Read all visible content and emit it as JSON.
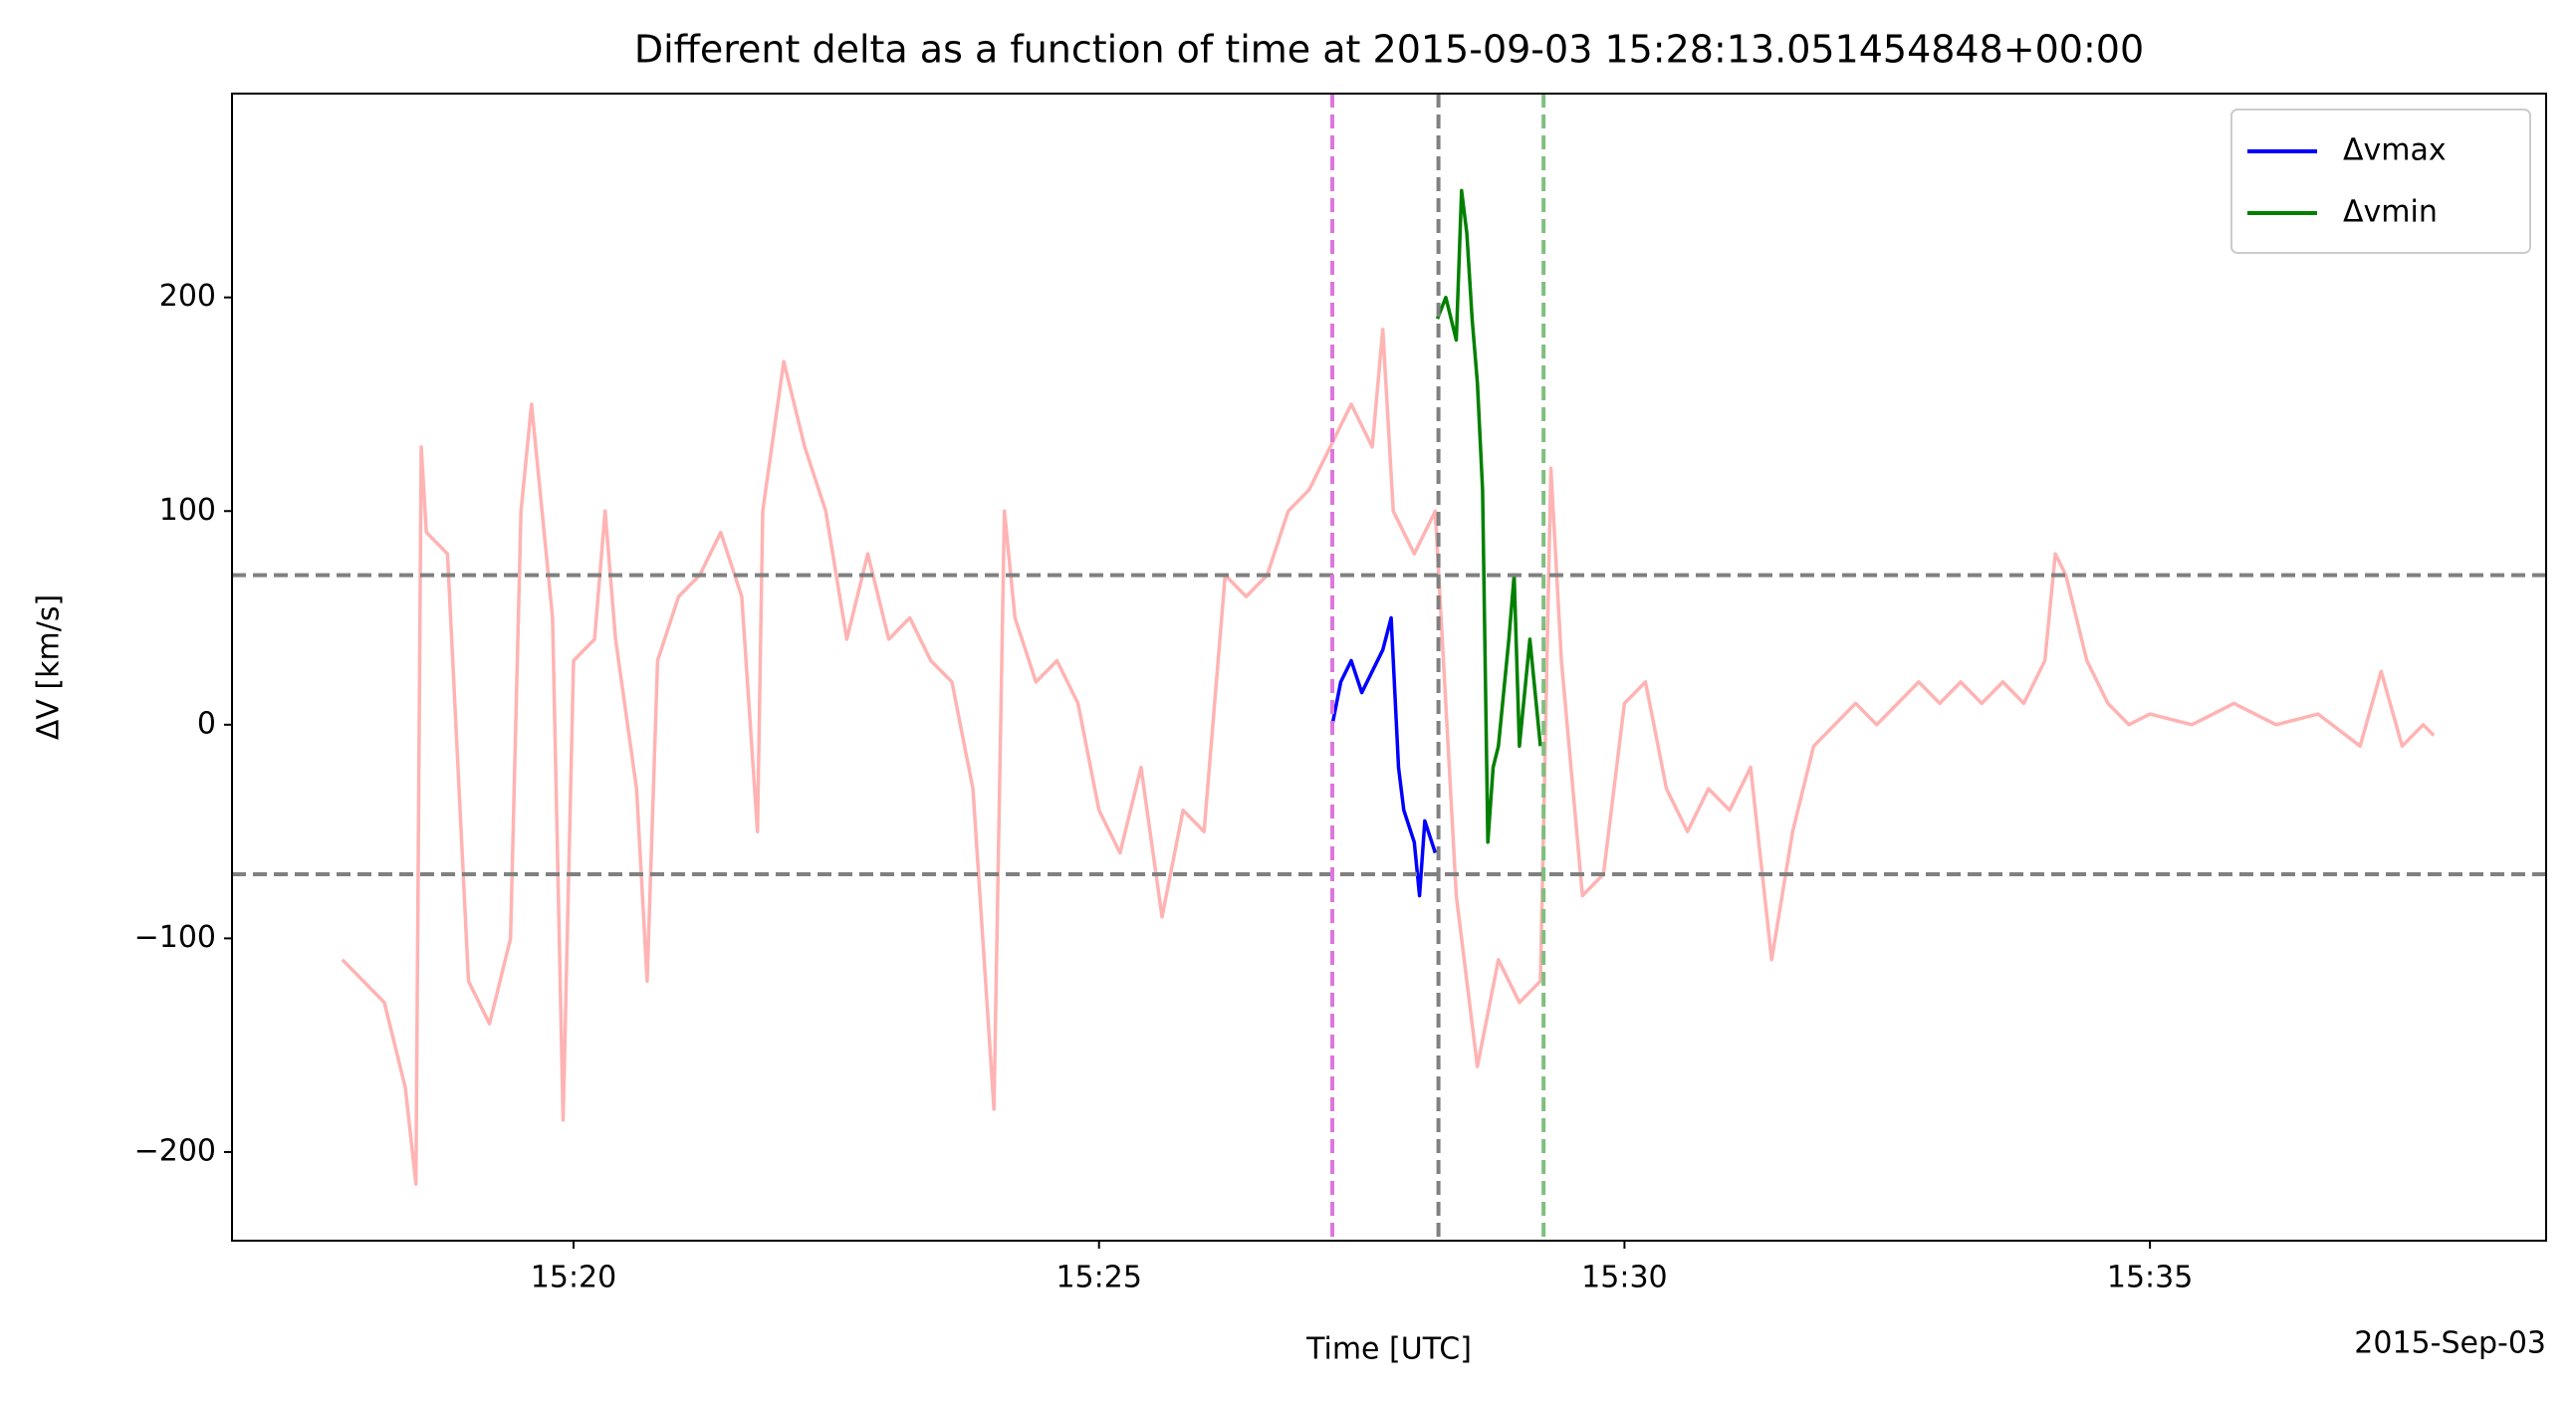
{
  "chart_data": {
    "type": "line",
    "title": "Different delta as a function of time at 2015-09-03 15:28:13.051454848+00:00",
    "x_label": "Time [UTC]",
    "y_label": "ΔV [km/s]",
    "date_label": "2015-Sep-03",
    "xlim": [
      16.75,
      38.77
    ],
    "ylim": [
      -241.5,
      295.4
    ],
    "xticks": [
      {
        "value": 20,
        "label": "15:20"
      },
      {
        "value": 25,
        "label": "15:25"
      },
      {
        "value": 30,
        "label": "15:30"
      },
      {
        "value": 35,
        "label": "15:35"
      }
    ],
    "yticks": [
      {
        "value": -200,
        "label": "−200"
      },
      {
        "value": -100,
        "label": "−100"
      },
      0,
      100,
      200
    ],
    "legend": "upper right",
    "hlines": {
      "values": [
        70,
        -70
      ],
      "color": "#808080"
    },
    "vlines": {
      "values": [
        27.22,
        28.23,
        29.23
      ],
      "colors": [
        "#dd77dd",
        "#808080",
        "#7fbf7f"
      ]
    },
    "series": [
      {
        "color": "#ffb3b3",
        "x": [
          17.8,
          18.0,
          18.2,
          18.4,
          18.5,
          18.55,
          18.6,
          18.8,
          19.0,
          19.2,
          19.4,
          19.5,
          19.6,
          19.8,
          19.9,
          20.0,
          20.2,
          20.3,
          20.4,
          20.6,
          20.7,
          20.8,
          21.0,
          21.2,
          21.4,
          21.6,
          21.75,
          21.8,
          22.0,
          22.2,
          22.4,
          22.6,
          22.8,
          23.0,
          23.2,
          23.4,
          23.6,
          23.8,
          24.0,
          24.1,
          24.2,
          24.4,
          24.6,
          24.8,
          25.0,
          25.2,
          25.4,
          25.6,
          25.8,
          26.0,
          26.2,
          26.4,
          26.6,
          26.8,
          27.0,
          27.2,
          27.4,
          27.6,
          27.7,
          27.8,
          28.0,
          28.2,
          28.4,
          28.6,
          28.8,
          29.0,
          29.2,
          29.3,
          29.4,
          29.6,
          29.8,
          30.0,
          30.2,
          30.4,
          30.6,
          30.8,
          31.0,
          31.2,
          31.4,
          31.6,
          31.8,
          32.0,
          32.2,
          32.4,
          32.6,
          32.8,
          33.0,
          33.2,
          33.4,
          33.6,
          33.8,
          34.0,
          34.1,
          34.2,
          34.4,
          34.6,
          34.8,
          35.0,
          35.4,
          35.8,
          36.2,
          36.6,
          37.0,
          37.2,
          37.4,
          37.6,
          37.7
        ],
        "values": [
          -110,
          -120,
          -130,
          -170,
          -215,
          130,
          90,
          80,
          -120,
          -140,
          -100,
          100,
          150,
          50,
          -185,
          30,
          40,
          100,
          40,
          -30,
          -120,
          30,
          60,
          70,
          90,
          60,
          -50,
          100,
          170,
          130,
          100,
          40,
          80,
          40,
          50,
          30,
          20,
          -30,
          -180,
          100,
          50,
          20,
          30,
          10,
          -40,
          -60,
          -20,
          -90,
          -40,
          -50,
          70,
          60,
          70,
          100,
          110,
          130,
          150,
          130,
          185,
          100,
          80,
          100,
          -80,
          -160,
          -110,
          -130,
          -120,
          120,
          30,
          -80,
          -70,
          10,
          20,
          -30,
          -50,
          -30,
          -40,
          -20,
          -110,
          -50,
          -10,
          0,
          10,
          0,
          10,
          20,
          10,
          20,
          10,
          20,
          10,
          30,
          80,
          70,
          30,
          10,
          0,
          5,
          0,
          10,
          0,
          5,
          -10,
          25,
          -10,
          0,
          -5
        ]
      },
      {
        "name": "Δvmax",
        "color": "#0000ff",
        "x": [
          27.22,
          27.3,
          27.4,
          27.5,
          27.6,
          27.7,
          27.78,
          27.85,
          27.9,
          28.0,
          28.05,
          28.1,
          28.2
        ],
        "values": [
          0,
          20,
          30,
          15,
          25,
          35,
          50,
          -20,
          -40,
          -55,
          -80,
          -45,
          -60
        ]
      },
      {
        "name": "Δvmin",
        "color": "#008000",
        "x": [
          28.22,
          28.3,
          28.4,
          28.45,
          28.5,
          28.55,
          28.6,
          28.65,
          28.7,
          28.75,
          28.8,
          28.9,
          28.95,
          29.0,
          29.1,
          29.2
        ],
        "values": [
          190,
          200,
          180,
          250,
          230,
          190,
          160,
          110,
          -55,
          -20,
          -10,
          40,
          70,
          -10,
          40,
          -10
        ]
      }
    ]
  }
}
